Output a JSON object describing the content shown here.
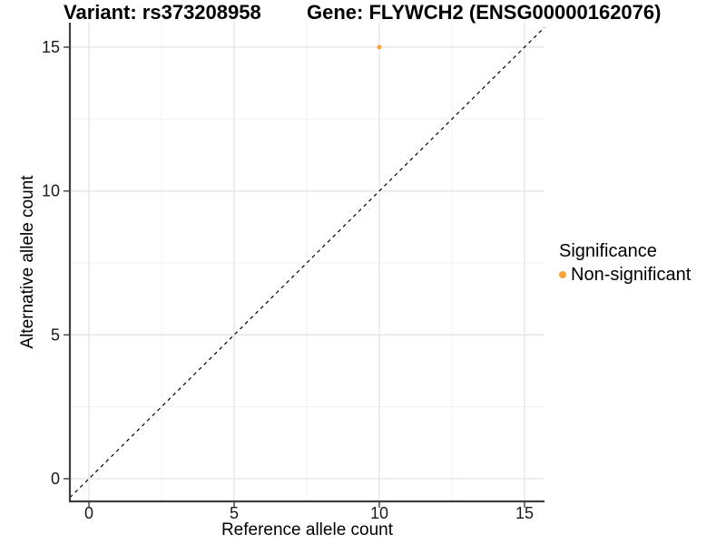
{
  "chart_data": {
    "type": "scatter",
    "title_left": "Variant: rs373208958",
    "title_right": "Gene: FLYWCH2 (ENSG00000162076)",
    "xlabel": "Reference allele count",
    "ylabel": "Alternative allele count",
    "x_breaks": [
      0,
      5,
      10,
      15
    ],
    "y_breaks": [
      0,
      5,
      10,
      15
    ],
    "x_minor_breaks": [
      2.5,
      7.5,
      12.5
    ],
    "y_minor_breaks": [
      2.5,
      7.5,
      12.5
    ],
    "xlim": [
      -0.66,
      15.69
    ],
    "ylim": [
      -0.79,
      15.86
    ],
    "grid": "major+minor",
    "series": [
      {
        "name": "Non-significant",
        "color": "#FAA43A",
        "points": [
          {
            "x": 10,
            "y": 15
          }
        ]
      }
    ],
    "reference_line": {
      "type": "abline",
      "slope": 1,
      "intercept": 0,
      "linetype": "dashed",
      "color": "#000000"
    },
    "legend": {
      "title": "Significance",
      "position": "right",
      "items": [
        {
          "label": "Non-significant",
          "color": "#FAA43A",
          "marker": "circle"
        }
      ]
    }
  },
  "colors": {
    "background": "#FFFFFF",
    "grid_major": "#E4E4E4",
    "grid_minor": "#F1F1F1",
    "axis": "#3F3F3F",
    "text": "#1A1A1A",
    "point": "#FAA43A"
  }
}
